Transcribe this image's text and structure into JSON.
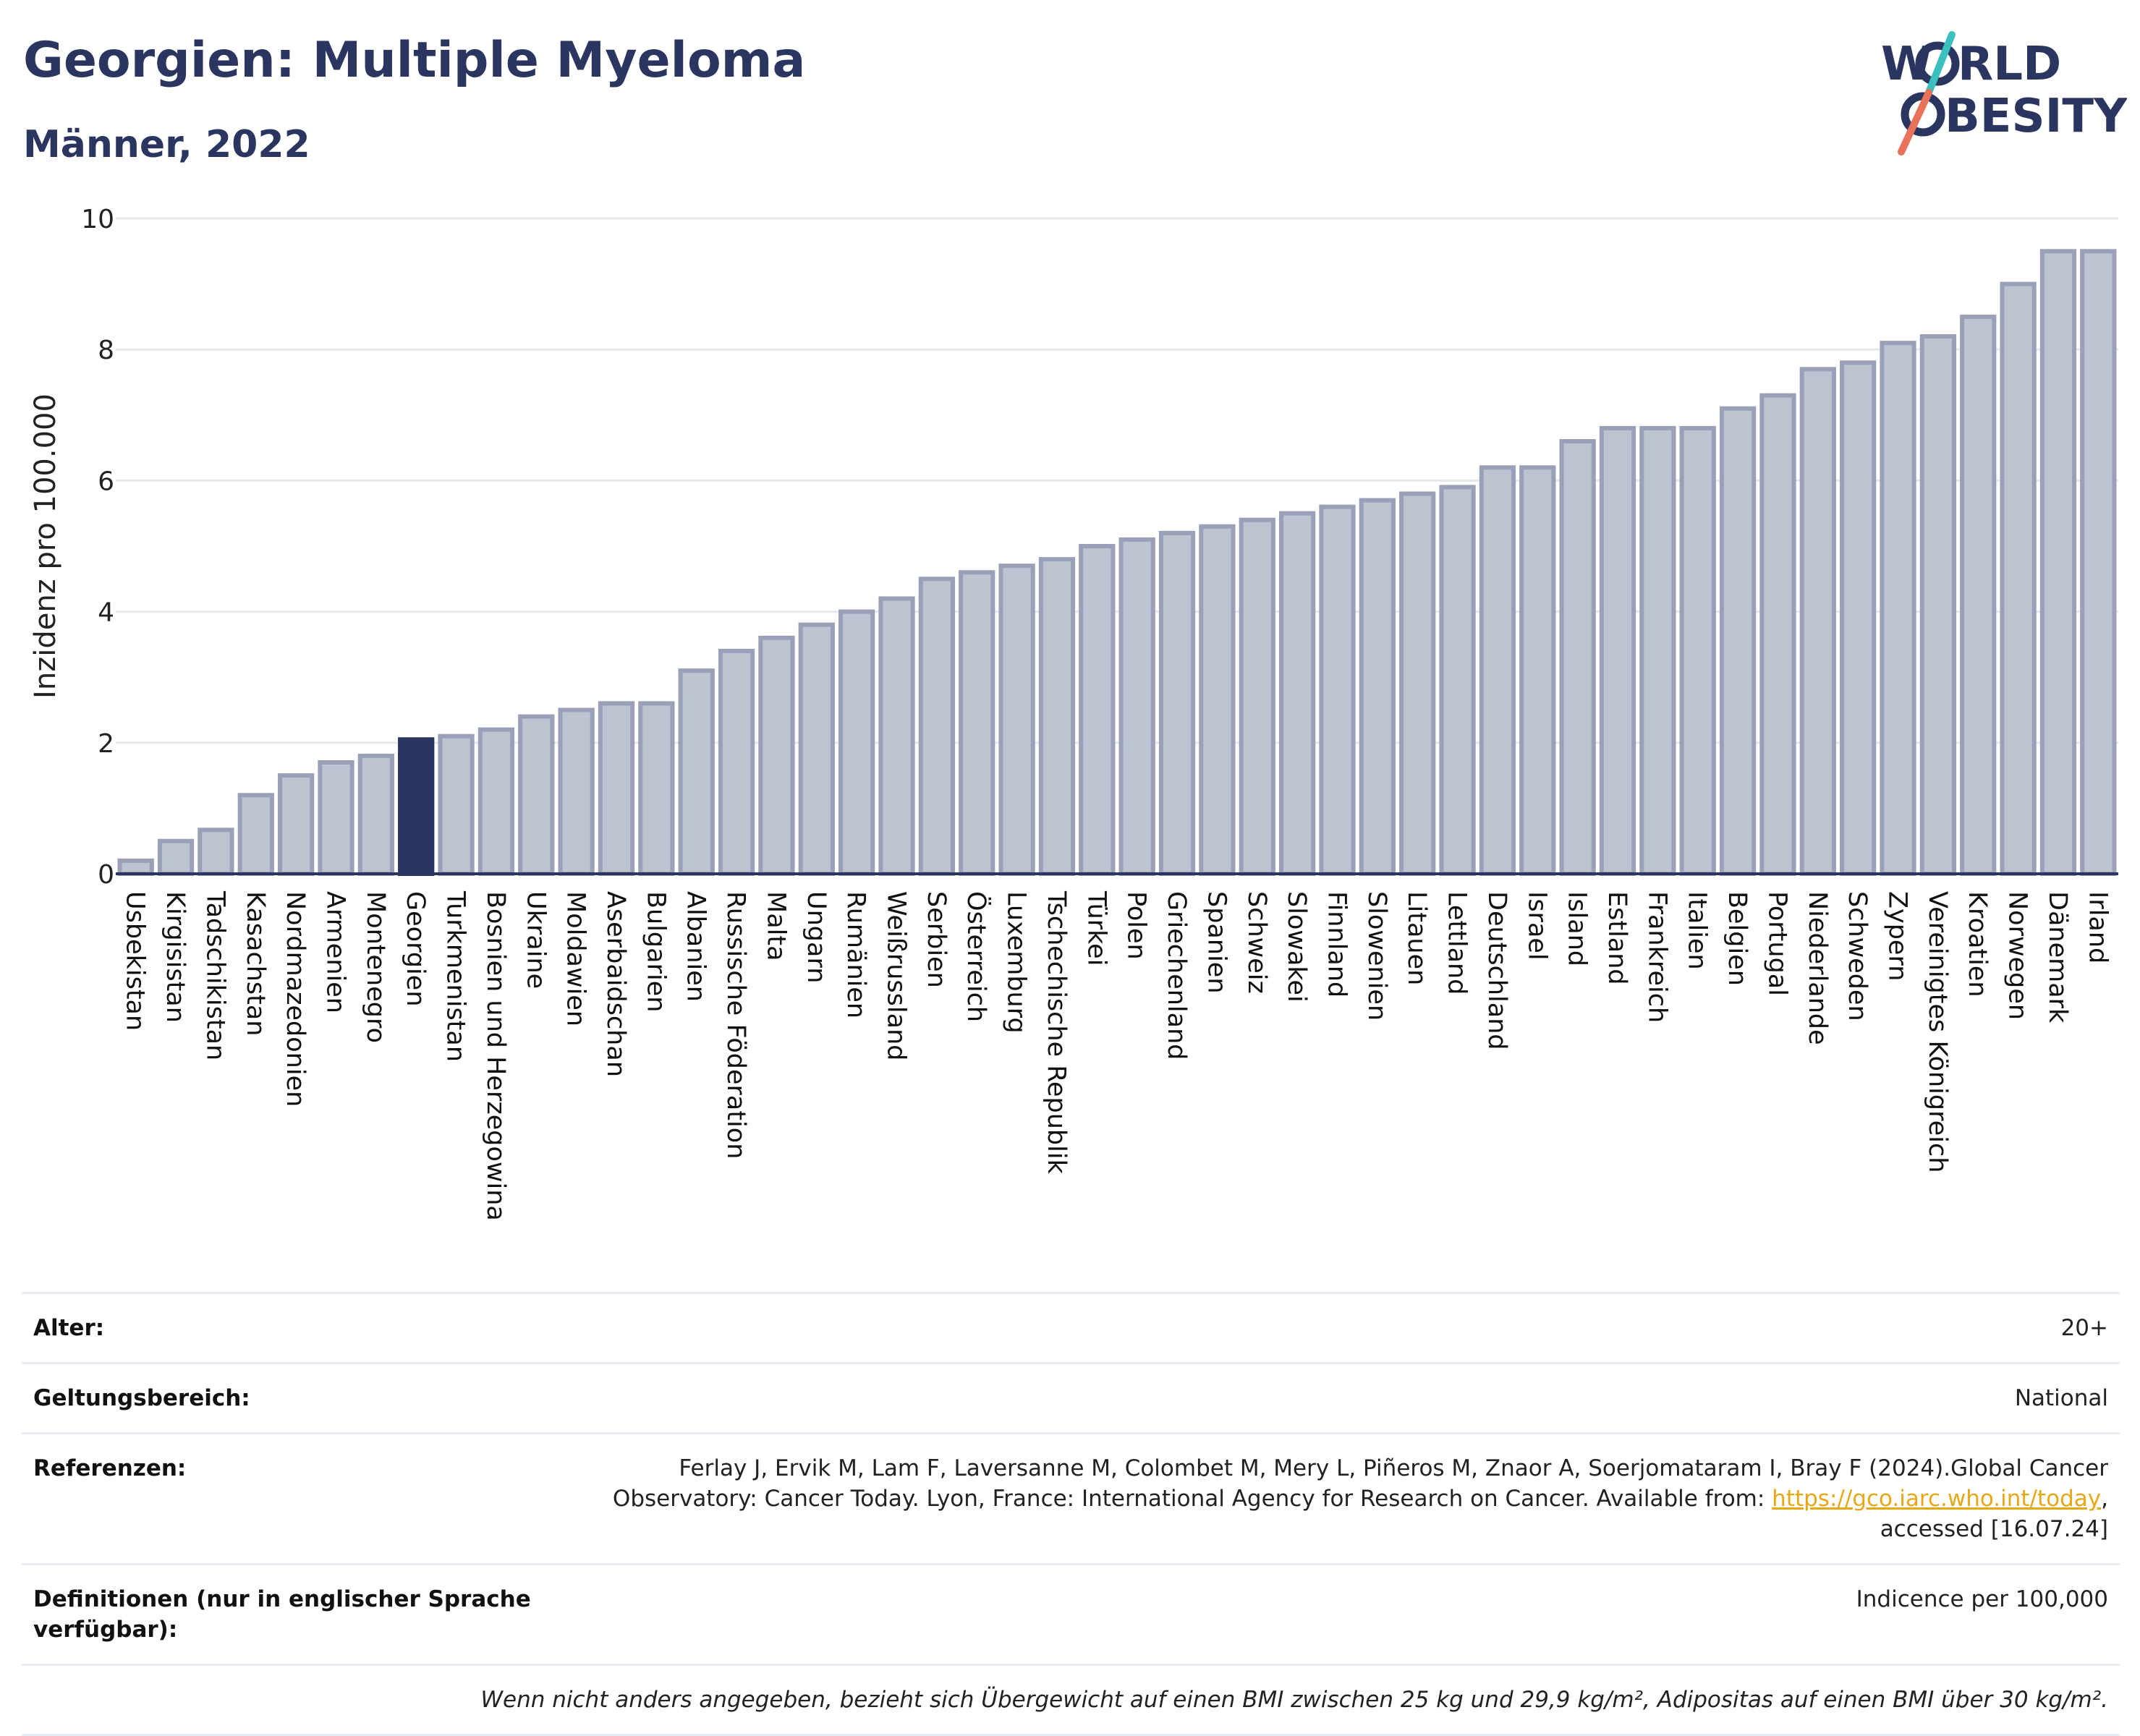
{
  "header": {
    "title": "Georgien: Multiple Myeloma",
    "subtitle": "Männer, 2022"
  },
  "logo": {
    "line1_a": "W",
    "line1_b": "RLD",
    "line2_a": "",
    "line2_b": "BESITY",
    "colors": {
      "text": "#2a3560",
      "slash_top": "#3bbfbf",
      "slash_bottom": "#e8735a"
    }
  },
  "chart_data": {
    "type": "bar",
    "ylabel": "Inzidenz pro 100.000",
    "xlabel": "",
    "ylim": [
      0,
      10
    ],
    "yticks": [
      0,
      2,
      4,
      6,
      8,
      10
    ],
    "grid": true,
    "highlight": "Georgien",
    "colors": {
      "bar": "#bec3d1",
      "bar_stroke": "#9aa0b8",
      "highlight": "#2a3560"
    },
    "categories": [
      "Usbekistan",
      "Kirgisistan",
      "Tadschikistan",
      "Kasachstan",
      "Nordmazedonien",
      "Armenien",
      "Montenegro",
      "Georgien",
      "Turkmenistan",
      "Bosnien und Herzegowina",
      "Ukraine",
      "Moldawien",
      "Aserbaidschan",
      "Bulgarien",
      "Albanien",
      "Russische Föderation",
      "Malta",
      "Ungarn",
      "Rumänien",
      "Weißrussland",
      "Serbien",
      "Österreich",
      "Luxemburg",
      "Tschechische Republik",
      "Türkei",
      "Polen",
      "Griechenland",
      "Spanien",
      "Schweiz",
      "Slowakei",
      "Finnland",
      "Slowenien",
      "Litauen",
      "Lettland",
      "Deutschland",
      "Israel",
      "Island",
      "Estland",
      "Frankreich",
      "Italien",
      "Belgien",
      "Portugal",
      "Niederlande",
      "Schweden",
      "Zypern",
      "Vereinigtes Königreich",
      "Kroatien",
      "Norwegen",
      "Dänemark",
      "Irland"
    ],
    "values": [
      0.2,
      0.5,
      0.67,
      1.2,
      1.5,
      1.7,
      1.8,
      2.05,
      2.1,
      2.2,
      2.4,
      2.5,
      2.6,
      2.6,
      3.1,
      3.4,
      3.6,
      3.8,
      4.0,
      4.2,
      4.5,
      4.6,
      4.7,
      4.8,
      5.0,
      5.1,
      5.2,
      5.3,
      5.4,
      5.5,
      5.6,
      5.7,
      5.8,
      5.9,
      6.2,
      6.2,
      6.6,
      6.8,
      6.8,
      6.8,
      7.1,
      7.3,
      7.7,
      7.8,
      8.1,
      8.2,
      8.5,
      9.0,
      9.5,
      9.5
    ]
  },
  "info": {
    "age_label": "Alter:",
    "age_value": "20+",
    "scope_label": "Geltungsbereich:",
    "scope_value": "National",
    "ref_label": "Referenzen:",
    "ref_text_1": "Ferlay J, Ervik M, Lam F, Laversanne M, Colombet M, Mery L, Piñeros M, Znaor A, Soerjomataram I, Bray F (2024).Global Cancer Observatory: Cancer Today. Lyon, France: International Agency for Research on Cancer. Available from:",
    "ref_link": "https://gco.iarc.who.int/today",
    "ref_text_2": ", accessed [16.07.24]",
    "def_label": "Definitionen (nur in englischer Sprache verfügbar):",
    "def_value": "Indicence per 100,000",
    "note": "Wenn nicht anders angegeben, bezieht sich Übergewicht auf einen BMI zwischen 25 kg und 29,9 kg/m², Adipositas auf einen BMI über 30 kg/m²."
  }
}
